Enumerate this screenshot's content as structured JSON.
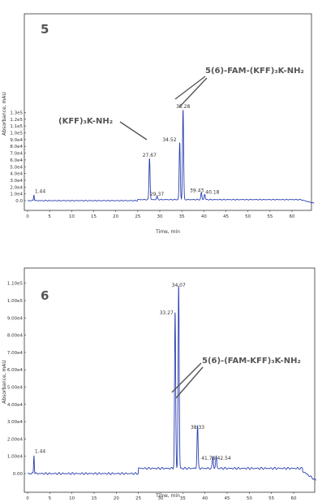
{
  "chart_data": [
    {
      "type": "line",
      "panel_label": "5",
      "xlabel": "Time, min",
      "ylabel": "Absorbance, mAU",
      "x_ticks": [
        "0",
        "5",
        "10",
        "15",
        "20",
        "25",
        "30",
        "35",
        "40",
        "45",
        "50",
        "55",
        "60"
      ],
      "y_ticks": [
        "0.0",
        "1.0e4",
        "2.0e4",
        "3.0e4",
        "4.0e4",
        "5.0e4",
        "6.0e4",
        "7.0e4",
        "8.0e4",
        "9.0e4",
        "1.0e5",
        "1.1e5",
        "1.2e5",
        "1.3e5"
      ],
      "xlim": [
        0,
        65
      ],
      "ylim": [
        -5000,
        138000
      ],
      "peaks": [
        {
          "label": "1.44",
          "x": 1.44,
          "y": 9000
        },
        {
          "label": "27.67",
          "x": 27.67,
          "y": 62000
        },
        {
          "label": "29.37",
          "x": 29.37,
          "y": 5000
        },
        {
          "label": "34.52",
          "x": 34.52,
          "y": 85000
        },
        {
          "label": "35.28",
          "x": 35.28,
          "y": 134000
        },
        {
          "label": "39.43",
          "x": 39.43,
          "y": 10000
        },
        {
          "label": "40.18",
          "x": 40.18,
          "y": 8000
        }
      ],
      "annotations": [
        {
          "text": "(KFF)₃K-NH₂",
          "targets": [
            27.67
          ]
        },
        {
          "text": "5(6)-FAM-(KFF)₃K-NH₂",
          "targets": [
            34.52,
            35.28
          ]
        }
      ]
    },
    {
      "type": "line",
      "panel_label": "6",
      "xlabel": "Time, min",
      "ylabel": "Absorbance, mAU",
      "x_ticks": [
        "0",
        "5",
        "10",
        "15",
        "20",
        "25",
        "30",
        "35",
        "40",
        "45",
        "50",
        "55",
        "60"
      ],
      "y_ticks": [
        "0.00",
        "1.00e4",
        "2.00e4",
        "3.00e4",
        "4.00e4",
        "5.00e4",
        "6.00e4",
        "7.00e4",
        "8.00e4",
        "9.00e4",
        "1.00e5",
        "1.10e5"
      ],
      "xlim": [
        0,
        65
      ],
      "ylim": [
        -5000,
        116000
      ],
      "peaks": [
        {
          "label": "1.44",
          "x": 1.44,
          "y": 11000
        },
        {
          "label": "33.27",
          "x": 33.27,
          "y": 91000
        },
        {
          "label": "34.07",
          "x": 34.07,
          "y": 107000
        },
        {
          "label": "38.33",
          "x": 38.33,
          "y": 25000
        },
        {
          "label": "41.78",
          "x": 41.78,
          "y": 7000
        },
        {
          "label": "42.54",
          "x": 42.54,
          "y": 7000
        }
      ],
      "annotations": [
        {
          "text": "5(6)-(FAM-KFF)₃K-NH₂",
          "targets": [
            33.27,
            34.07
          ]
        }
      ]
    }
  ]
}
